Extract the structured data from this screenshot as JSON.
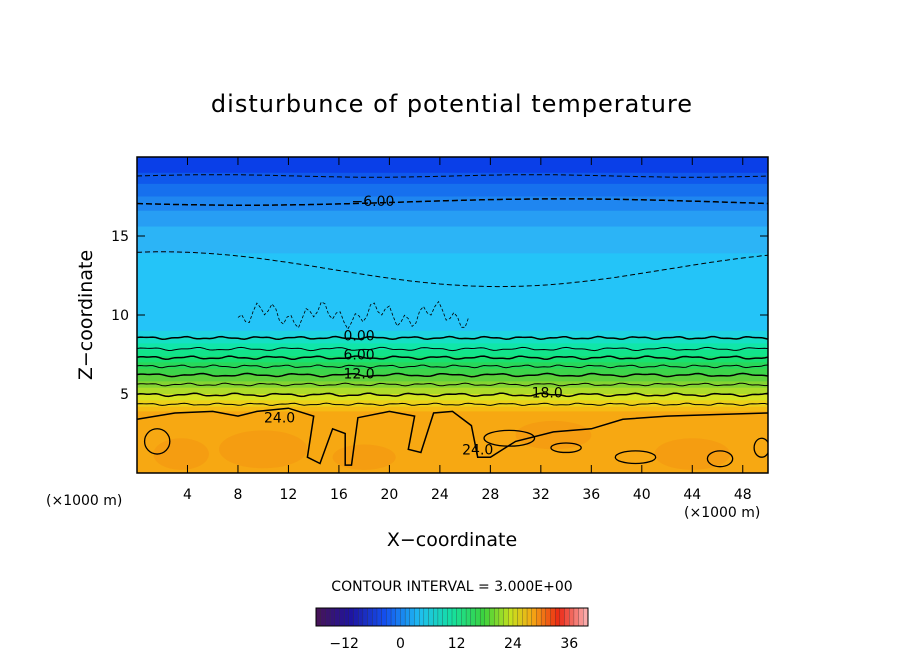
{
  "chart_data": {
    "type": "heatmap",
    "title": "disturbunce of potential temperature",
    "xlabel": "X−coordinate",
    "ylabel": "Z−coordinate",
    "x_unit_left": "(×1000 m)",
    "x_unit_right": "(×1000 m)",
    "xlim": [
      0,
      50
    ],
    "ylim": [
      0,
      20
    ],
    "x_ticks": [
      4,
      8,
      12,
      16,
      20,
      24,
      28,
      32,
      36,
      40,
      44,
      48
    ],
    "y_ticks": [
      5,
      10,
      15
    ],
    "contour_interval_text": "CONTOUR INTERVAL = 3.000E+00",
    "contour_labels": [
      {
        "text": "−6.00",
        "x": 18.7,
        "z": 17.2
      },
      {
        "text": "0.00",
        "x": 17.6,
        "z": 8.7
      },
      {
        "text": "6.00",
        "x": 17.6,
        "z": 7.5
      },
      {
        "text": "12.0",
        "x": 17.6,
        "z": 6.3
      },
      {
        "text": "18.0",
        "x": 32.5,
        "z": 5.1
      },
      {
        "text": "24.0",
        "x": 11.3,
        "z": 3.5
      },
      {
        "text": "24.0",
        "x": 27.0,
        "z": 1.5
      }
    ],
    "colorbar": {
      "min": -18,
      "max": 40,
      "ticks": [
        "−12",
        "0",
        "12",
        "24",
        "36"
      ],
      "tick_values": [
        -12,
        0,
        12,
        24,
        36
      ]
    },
    "bands": [
      {
        "z0": 19.0,
        "z1": 20.0,
        "color": "#0a3fe8"
      },
      {
        "z0": 18.3,
        "z1": 19.0,
        "color": "#0f58ec"
      },
      {
        "z0": 17.5,
        "z1": 18.3,
        "color": "#1670ee"
      },
      {
        "z0": 16.6,
        "z1": 17.5,
        "color": "#1f86f0"
      },
      {
        "z0": 15.6,
        "z1": 16.6,
        "color": "#279ef4"
      },
      {
        "z0": 13.9,
        "z1": 15.6,
        "color": "#2cb4f6"
      },
      {
        "z0": 9.0,
        "z1": 13.9,
        "color": "#24c4f8"
      },
      {
        "z0": 8.6,
        "z1": 9.0,
        "color": "#1fd3e2"
      },
      {
        "z0": 8.2,
        "z1": 8.6,
        "color": "#14e0c4"
      },
      {
        "z0": 7.8,
        "z1": 8.2,
        "color": "#10e6a8"
      },
      {
        "z0": 7.4,
        "z1": 7.8,
        "color": "#12e48a"
      },
      {
        "z0": 7.0,
        "z1": 7.4,
        "color": "#18e070"
      },
      {
        "z0": 6.6,
        "z1": 7.0,
        "color": "#28d85a"
      },
      {
        "z0": 6.2,
        "z1": 6.6,
        "color": "#3cd44a"
      },
      {
        "z0": 5.8,
        "z1": 6.2,
        "color": "#5ed03c"
      },
      {
        "z0": 5.4,
        "z1": 5.8,
        "color": "#84d432"
      },
      {
        "z0": 5.0,
        "z1": 5.4,
        "color": "#aedc2a"
      },
      {
        "z0": 4.6,
        "z1": 5.0,
        "color": "#d6e422"
      },
      {
        "z0": 4.2,
        "z1": 4.6,
        "color": "#ecd21a"
      },
      {
        "z0": 3.9,
        "z1": 4.2,
        "color": "#f6bc14"
      },
      {
        "z0": 0.0,
        "z1": 3.9,
        "color": "#f7a812"
      }
    ]
  }
}
